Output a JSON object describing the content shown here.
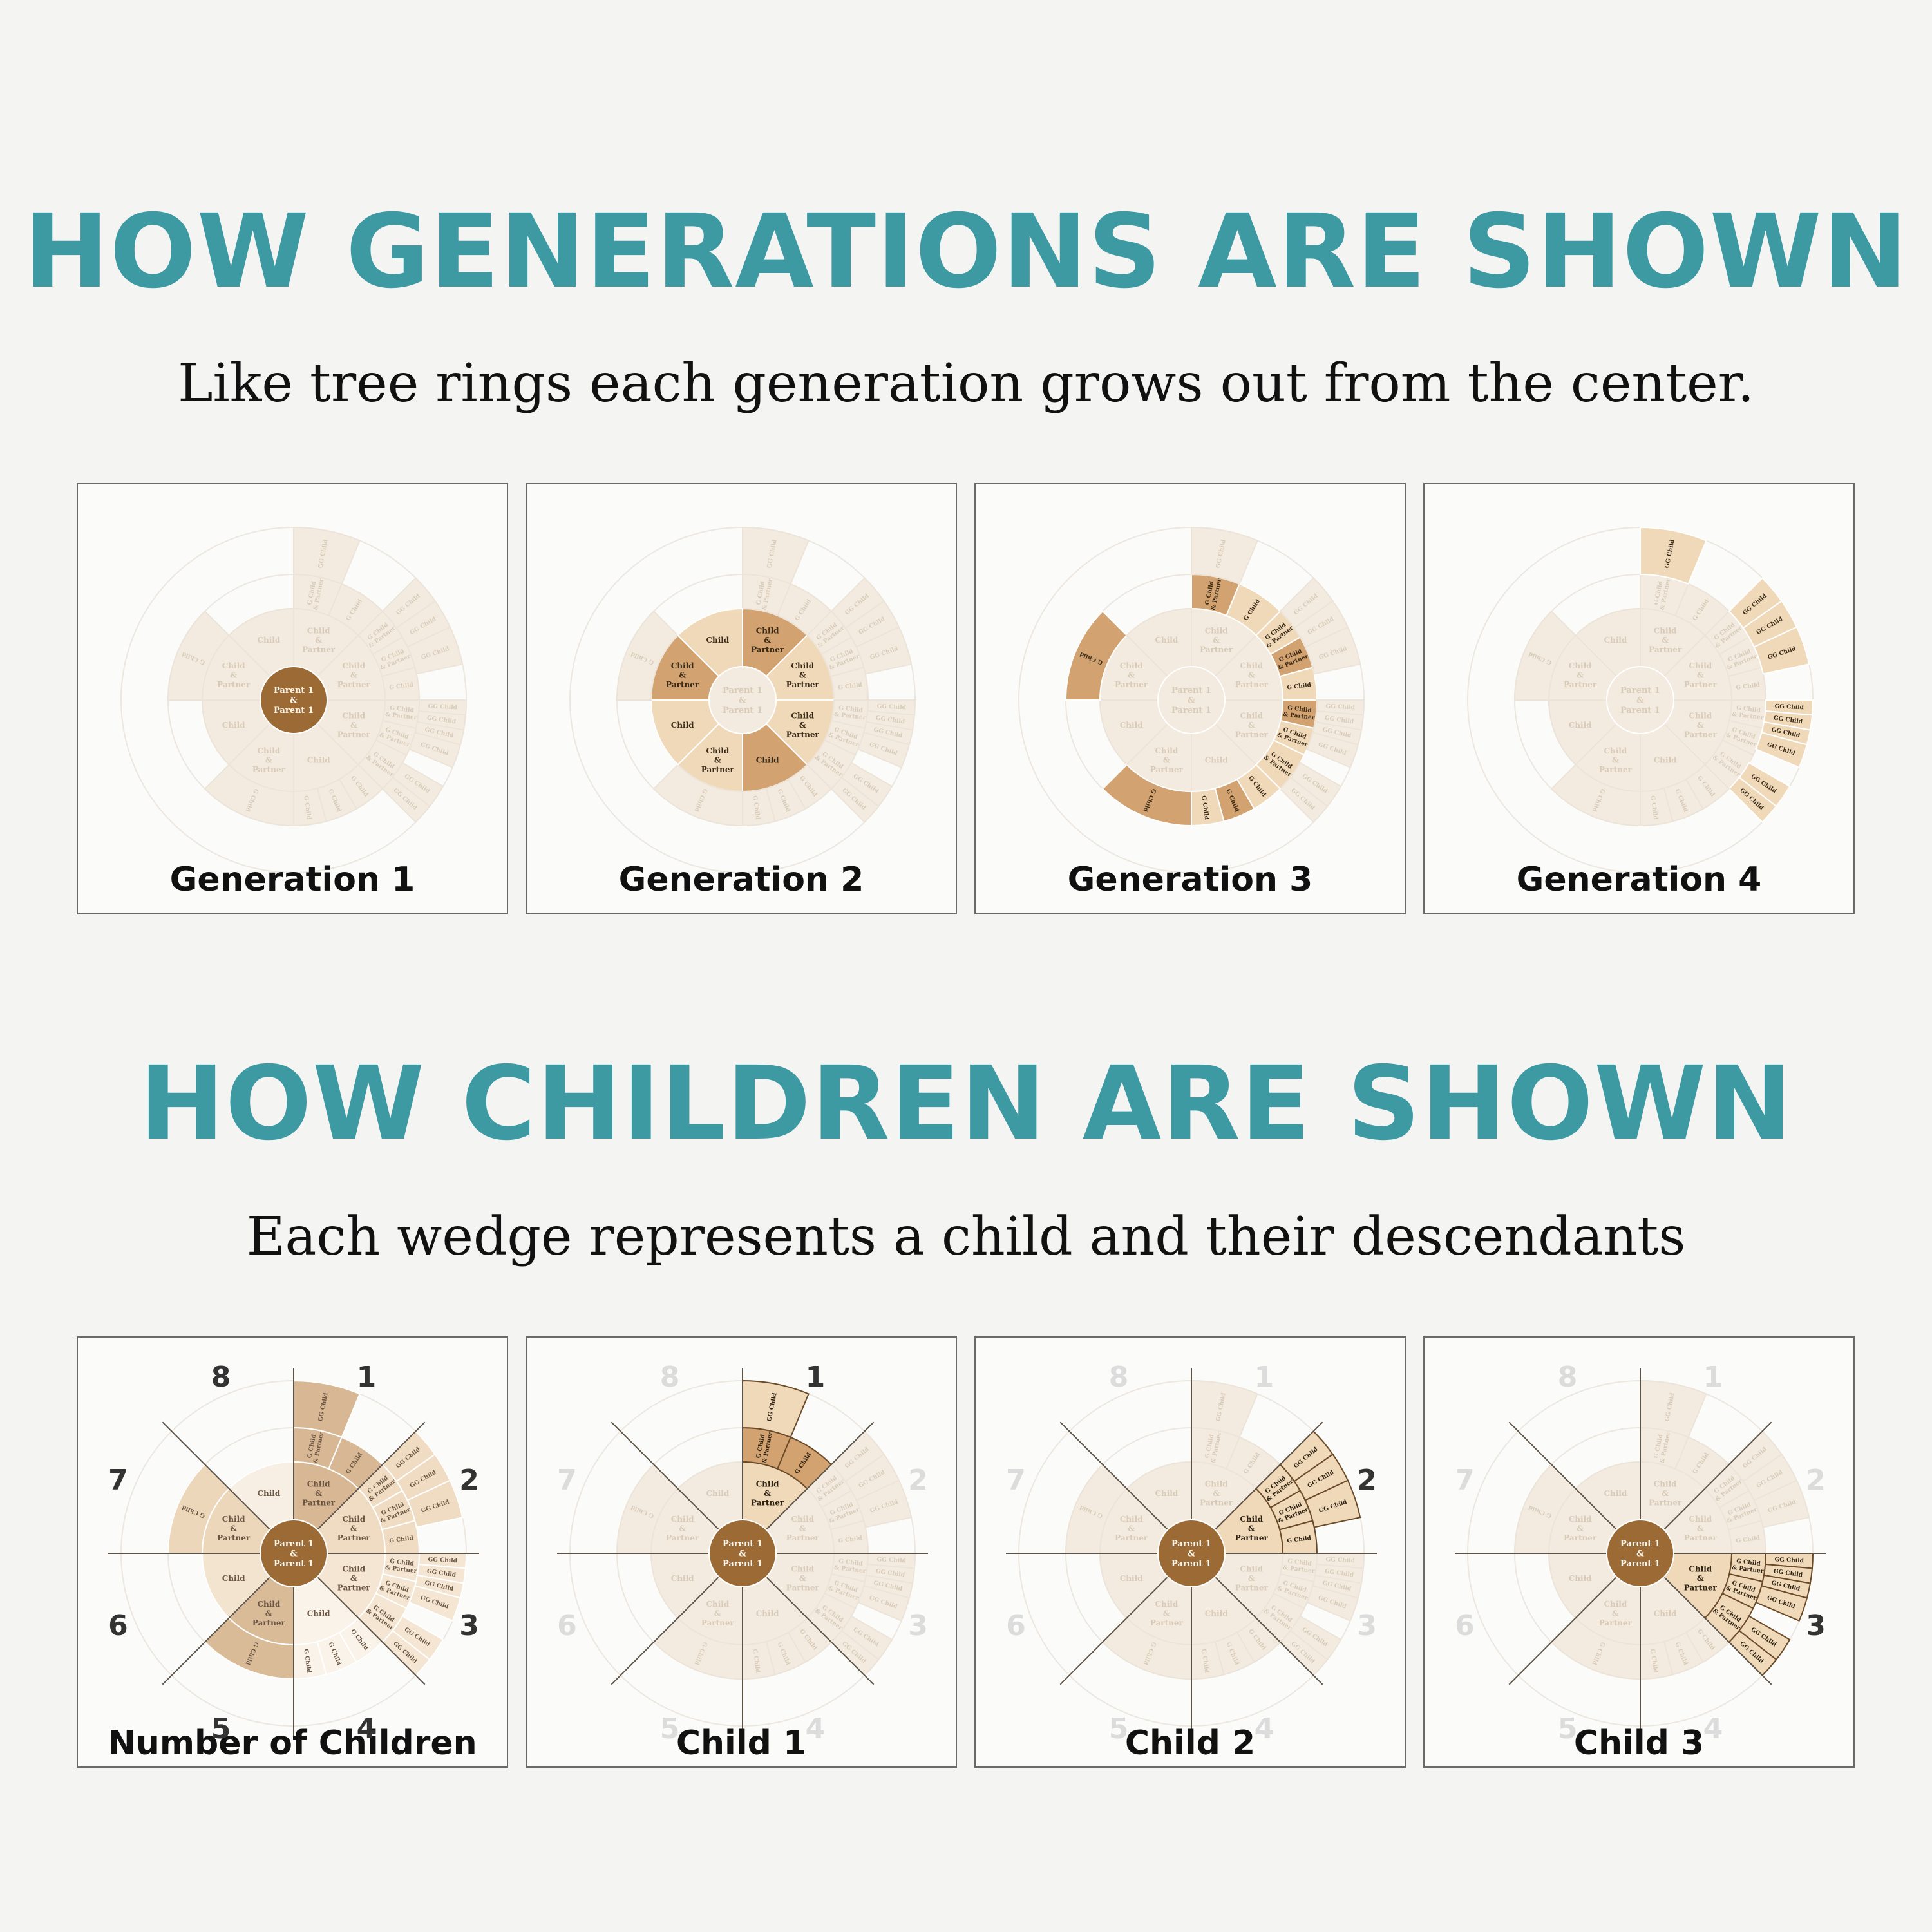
{
  "sections": {
    "generations": {
      "title": "HOW GENERATIONS ARE SHOWN",
      "subtitle": "Like tree rings each generation grows out from the center.",
      "panels": [
        {
          "caption": "Generation 1"
        },
        {
          "caption": "Generation 2"
        },
        {
          "caption": "Generation 3"
        },
        {
          "caption": "Generation 4"
        }
      ]
    },
    "children": {
      "title": "HOW CHILDREN ARE SHOWN",
      "subtitle": "Each wedge represents a child and their descendants",
      "panels": [
        {
          "caption": "Number of Children"
        },
        {
          "caption": "Child 1"
        },
        {
          "caption": "Child 2"
        },
        {
          "caption": "Child 3"
        }
      ]
    }
  },
  "wedge_numbers": [
    "1",
    "2",
    "3",
    "4",
    "5",
    "6",
    "7",
    "8"
  ],
  "diagram_labels": {
    "center": [
      "Parent 1",
      "&",
      "Parent 1"
    ],
    "child": "Child",
    "child_partner": [
      "Child",
      "&",
      "Partner"
    ],
    "g_child": "G Child",
    "g_child_partner": [
      "G Child",
      "& Partner"
    ],
    "gg_child": "GG Child"
  },
  "colors": {
    "heading": "#3d9aa3",
    "ring_dark": "#9b6a35",
    "ring_medium": "#d2a370",
    "ring_light": "#efd9b8",
    "ring_faint": "#f3ebe0"
  }
}
